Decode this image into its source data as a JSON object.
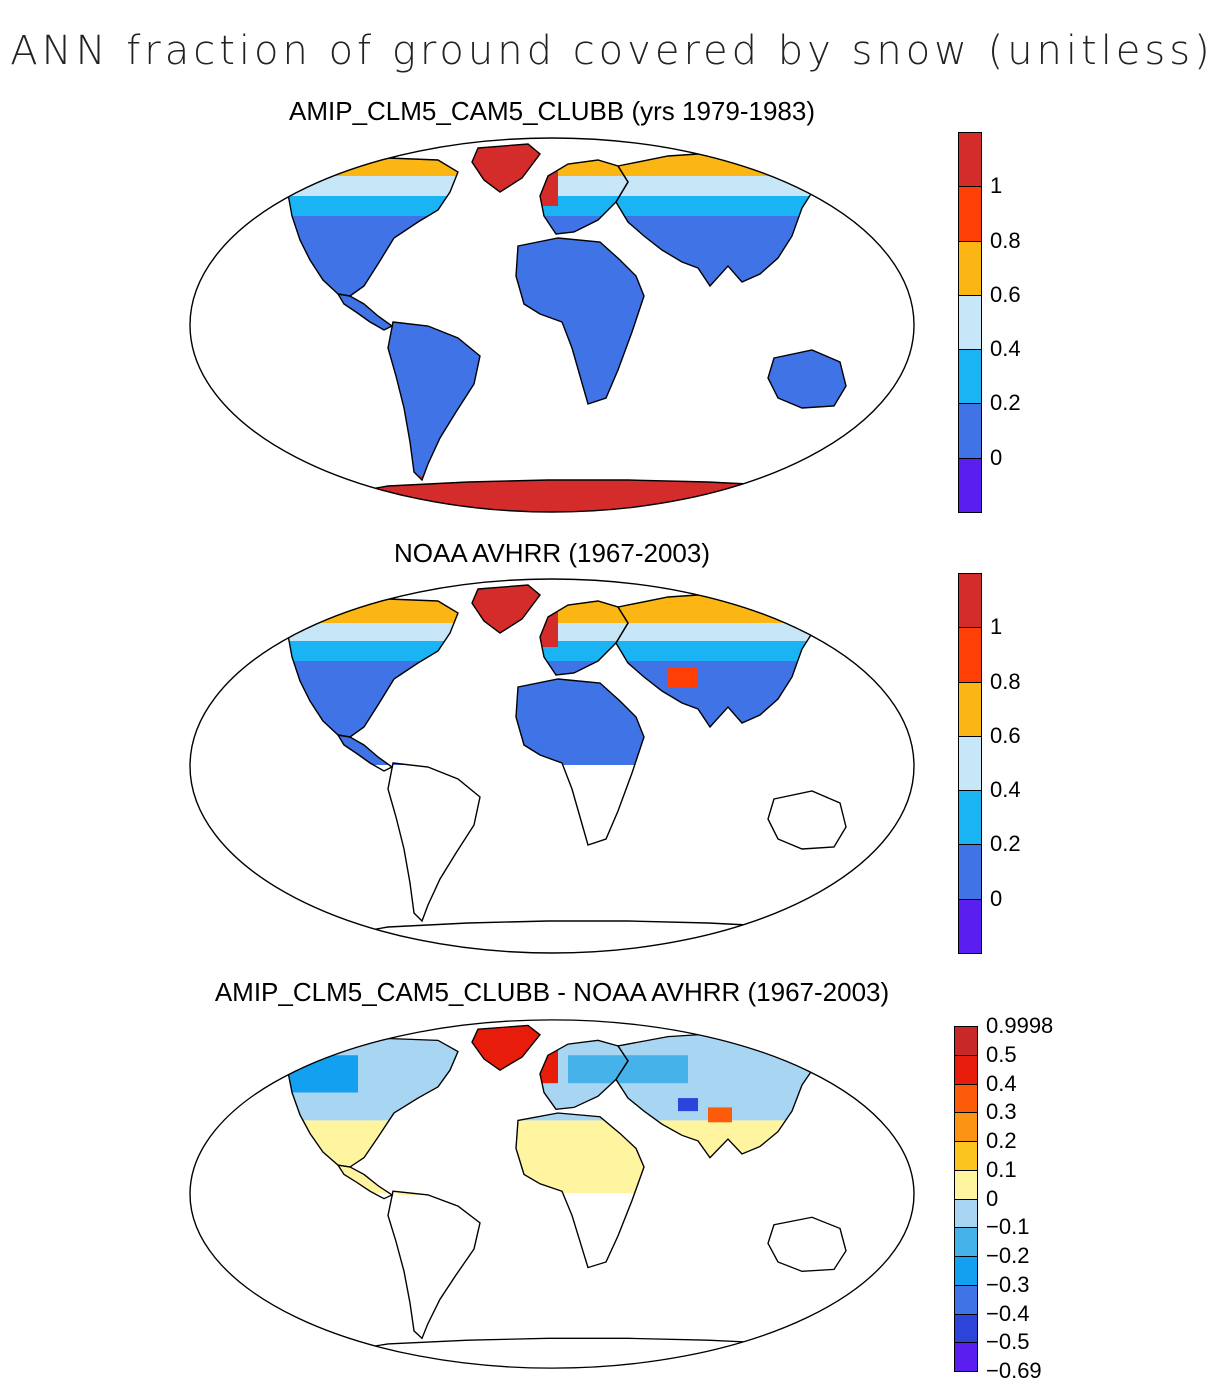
{
  "title": "ANN fraction of ground covered by snow (unitless)",
  "colors": {
    "ocean": "#ffffff",
    "coast": "#000000",
    "scale_abs": [
      "#5a1ff0",
      "#3f73e6",
      "#1ab4f5",
      "#c7e6f7",
      "#fbb614",
      "#ff3f05",
      "#d42b2b"
    ],
    "scale_diff": [
      "#5a1ff0",
      "#2c44d9",
      "#3f73e6",
      "#13a0f0",
      "#45b2ea",
      "#a7d5f2",
      "#fff5a0",
      "#fbc41e",
      "#fb9314",
      "#fc5c0a",
      "#e81c0a",
      "#c82828"
    ]
  },
  "panels": [
    {
      "title": "AMIP_CLM5_CAM5_CLUBB (yrs 1979-1983)",
      "labels": [
        "1",
        "0.8",
        "0.6",
        "0.4",
        "0.2",
        "0"
      ]
    },
    {
      "title": "NOAA AVHRR (1967-2003)",
      "labels": [
        "1",
        "0.8",
        "0.6",
        "0.4",
        "0.2",
        "0"
      ]
    },
    {
      "title": "AMIP_CLM5_CAM5_CLUBB - NOAA AVHRR (1967-2003)",
      "labels": [
        "0.9998",
        "0.5",
        "0.4",
        "0.3",
        "0.2",
        "0.1",
        "0",
        "−0.1",
        "−0.2",
        "−0.3",
        "−0.4",
        "−0.5",
        "−0.69"
      ]
    }
  ]
}
